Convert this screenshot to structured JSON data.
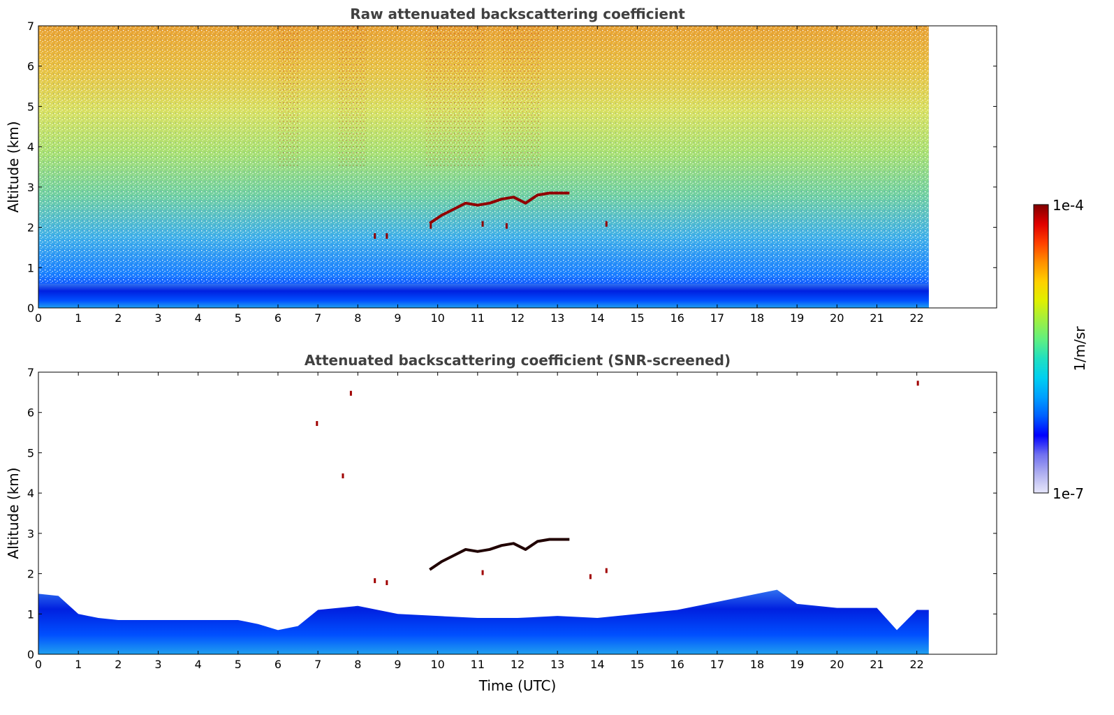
{
  "chart_data": [
    {
      "type": "heatmap",
      "title": "Raw attenuated backscattering coefficient",
      "xlabel": "",
      "ylabel": "Altitude (km)",
      "xlim": [
        0,
        24
      ],
      "ylim": [
        0,
        7
      ],
      "xticks": [
        0,
        1,
        2,
        3,
        4,
        5,
        6,
        7,
        8,
        9,
        10,
        11,
        12,
        13,
        14,
        15,
        16,
        17,
        18,
        19,
        20,
        21,
        22
      ],
      "yticks": [
        0,
        1,
        2,
        3,
        4,
        5,
        6,
        7
      ],
      "data_extent_x": [
        0,
        22.3
      ],
      "features": [
        {
          "name": "boundary_layer",
          "x_range": [
            0,
            22.3
          ],
          "top_km": 0.6,
          "level": "low"
        },
        {
          "name": "cloud_layer",
          "x_range": [
            9.8,
            13.3
          ],
          "alt_km": [
            2.0,
            2.85
          ],
          "level": "high"
        },
        {
          "name": "noise_above",
          "x_range": [
            0,
            22.3
          ],
          "alt_km": [
            1.0,
            7.0
          ],
          "level": "noisy"
        }
      ]
    },
    {
      "type": "heatmap",
      "title": "Attenuated backscattering coefficient (SNR-screened)",
      "xlabel": "Time (UTC)",
      "ylabel": "Altitude (km)",
      "xlim": [
        0,
        24
      ],
      "ylim": [
        0,
        7
      ],
      "xticks": [
        0,
        1,
        2,
        3,
        4,
        5,
        6,
        7,
        8,
        9,
        10,
        11,
        12,
        13,
        14,
        15,
        16,
        17,
        18,
        19,
        20,
        21,
        22
      ],
      "yticks": [
        0,
        1,
        2,
        3,
        4,
        5,
        6,
        7
      ],
      "data_extent_x": [
        0,
        22.3
      ],
      "pbl_top_km": [
        [
          0,
          1.5
        ],
        [
          0.5,
          1.45
        ],
        [
          1,
          1.0
        ],
        [
          1.5,
          0.9
        ],
        [
          2,
          0.85
        ],
        [
          2.5,
          0.85
        ],
        [
          3,
          0.85
        ],
        [
          4,
          0.85
        ],
        [
          5,
          0.85
        ],
        [
          5.5,
          0.75
        ],
        [
          6,
          0.6
        ],
        [
          6.5,
          0.7
        ],
        [
          7,
          1.1
        ],
        [
          8,
          1.2
        ],
        [
          9,
          1.0
        ],
        [
          10,
          0.95
        ],
        [
          11,
          0.9
        ],
        [
          12,
          0.9
        ],
        [
          13,
          0.95
        ],
        [
          14,
          0.9
        ],
        [
          15,
          1.0
        ],
        [
          16,
          1.1
        ],
        [
          17,
          1.3
        ],
        [
          18,
          1.5
        ],
        [
          18.5,
          1.6
        ],
        [
          19,
          1.25
        ],
        [
          20,
          1.15
        ],
        [
          21,
          1.15
        ],
        [
          21.5,
          0.6
        ],
        [
          22,
          1.1
        ],
        [
          22.3,
          1.1
        ]
      ],
      "cloud_layer": {
        "x_range": [
          9.8,
          13.3
        ],
        "alt_km": [
          2.0,
          2.85
        ]
      }
    }
  ],
  "colorbar": {
    "max_label": "1e-4",
    "min_label": "1e-7",
    "unit_label": "1/m/sr",
    "colormap": [
      "#e6e6fa",
      "#b0b0f0",
      "#7070f0",
      "#0000ff",
      "#0060ff",
      "#00a0ff",
      "#00d0f0",
      "#20e0c0",
      "#60f080",
      "#a0f040",
      "#e0f000",
      "#ffd000",
      "#ff9000",
      "#ff4000",
      "#e00000",
      "#800000"
    ]
  }
}
